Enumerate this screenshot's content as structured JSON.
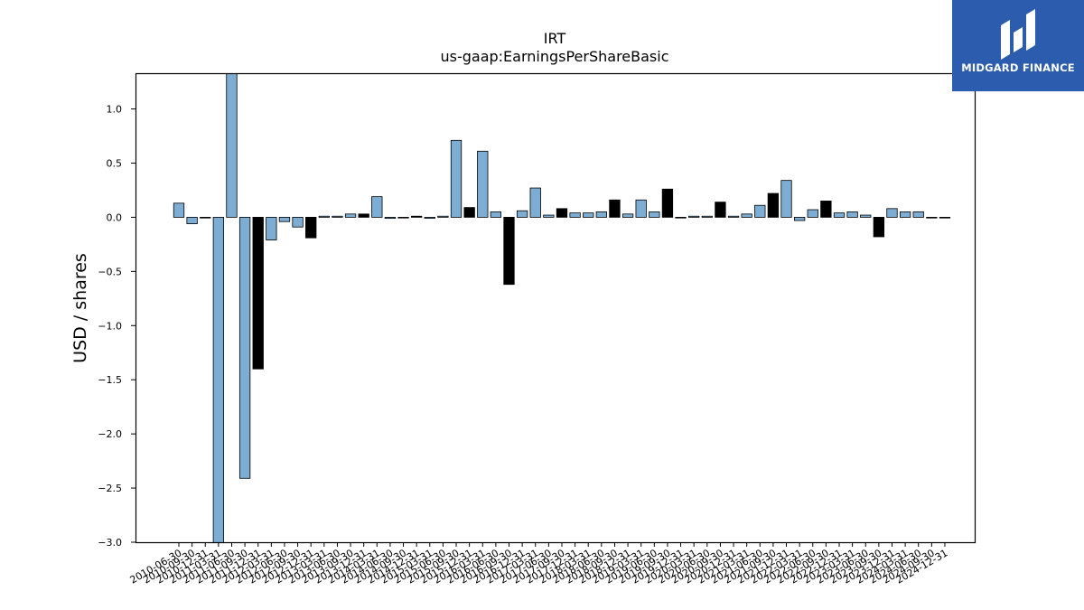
{
  "chart_data": {
    "type": "bar",
    "title": "IRT",
    "subtitle": "us-gaap:EarningsPerShareBasic",
    "xlabel": "",
    "ylabel": "USD / shares",
    "ylim": [
      -3.0,
      1.33
    ],
    "yticks": [
      -3.0,
      -2.5,
      -2.0,
      -1.5,
      -1.0,
      -0.5,
      0.0,
      0.5,
      1.0
    ],
    "ytick_labels": [
      "−3.0",
      "−2.5",
      "−2.0",
      "−1.5",
      "−1.0",
      "−0.5",
      "0.0",
      "0.5",
      "1.0"
    ],
    "grid": false,
    "colors": {
      "quarter": "#7eadd3",
      "annual": "#000000",
      "edge": "#000000"
    },
    "categories": [
      "2010-06-30",
      "2010-09-30",
      "2010-12-31",
      "2011-03-31",
      "2011-06-30",
      "2011-09-30",
      "2011-12-31",
      "2012-03-31",
      "2012-06-30",
      "2012-09-30",
      "2012-12-31",
      "2013-03-31",
      "2013-06-30",
      "2013-09-30",
      "2013-12-31",
      "2014-03-31",
      "2014-06-30",
      "2014-09-30",
      "2014-12-31",
      "2015-03-31",
      "2015-06-30",
      "2015-09-30",
      "2015-12-31",
      "2016-03-31",
      "2016-06-30",
      "2016-09-30",
      "2016-12-31",
      "2017-03-31",
      "2017-06-30",
      "2017-09-30",
      "2017-12-31",
      "2018-03-31",
      "2018-06-30",
      "2018-09-30",
      "2018-12-31",
      "2019-03-31",
      "2019-06-30",
      "2019-09-30",
      "2019-12-31",
      "2020-03-31",
      "2020-06-30",
      "2020-09-30",
      "2020-12-31",
      "2021-03-31",
      "2021-06-30",
      "2021-09-30",
      "2021-12-31",
      "2022-03-31",
      "2022-06-30",
      "2022-09-30",
      "2022-12-31",
      "2023-03-31",
      "2023-06-30",
      "2023-09-30",
      "2023-12-31",
      "2024-03-31",
      "2024-06-30",
      "2024-09-30",
      "2024-12-31"
    ],
    "values": [
      0.13,
      -0.06,
      0.0,
      -3.05,
      1.35,
      -2.41,
      -1.4,
      -0.21,
      -0.04,
      -0.09,
      -0.19,
      0.01,
      0.01,
      0.03,
      0.03,
      0.19,
      -0.01,
      0.0,
      0.01,
      -0.01,
      0.01,
      0.71,
      0.09,
      0.61,
      0.05,
      -0.62,
      0.06,
      0.27,
      0.02,
      0.08,
      0.04,
      0.04,
      0.05,
      0.16,
      0.03,
      0.16,
      0.05,
      0.26,
      0.0,
      0.01,
      0.01,
      0.14,
      0.01,
      0.03,
      0.11,
      0.22,
      0.34,
      -0.03,
      0.07,
      0.15,
      0.04,
      0.05,
      0.02,
      -0.18,
      0.08,
      0.05,
      0.05,
      0.0,
      0.0
    ],
    "bar_kind": [
      "q",
      "q",
      "q",
      "q",
      "q",
      "q",
      "a",
      "q",
      "q",
      "q",
      "a",
      "q",
      "q",
      "q",
      "a",
      "q",
      "q",
      "q",
      "a",
      "q",
      "q",
      "q",
      "a",
      "q",
      "q",
      "a",
      "q",
      "q",
      "q",
      "a",
      "q",
      "q",
      "q",
      "a",
      "q",
      "q",
      "q",
      "a",
      "q",
      "q",
      "q",
      "a",
      "q",
      "q",
      "q",
      "a",
      "q",
      "q",
      "q",
      "a",
      "q",
      "q",
      "q",
      "a",
      "q",
      "q",
      "q",
      "q",
      "q"
    ]
  },
  "logo": {
    "text": "MIDGARD FINANCE",
    "color": "#2b5cad"
  }
}
